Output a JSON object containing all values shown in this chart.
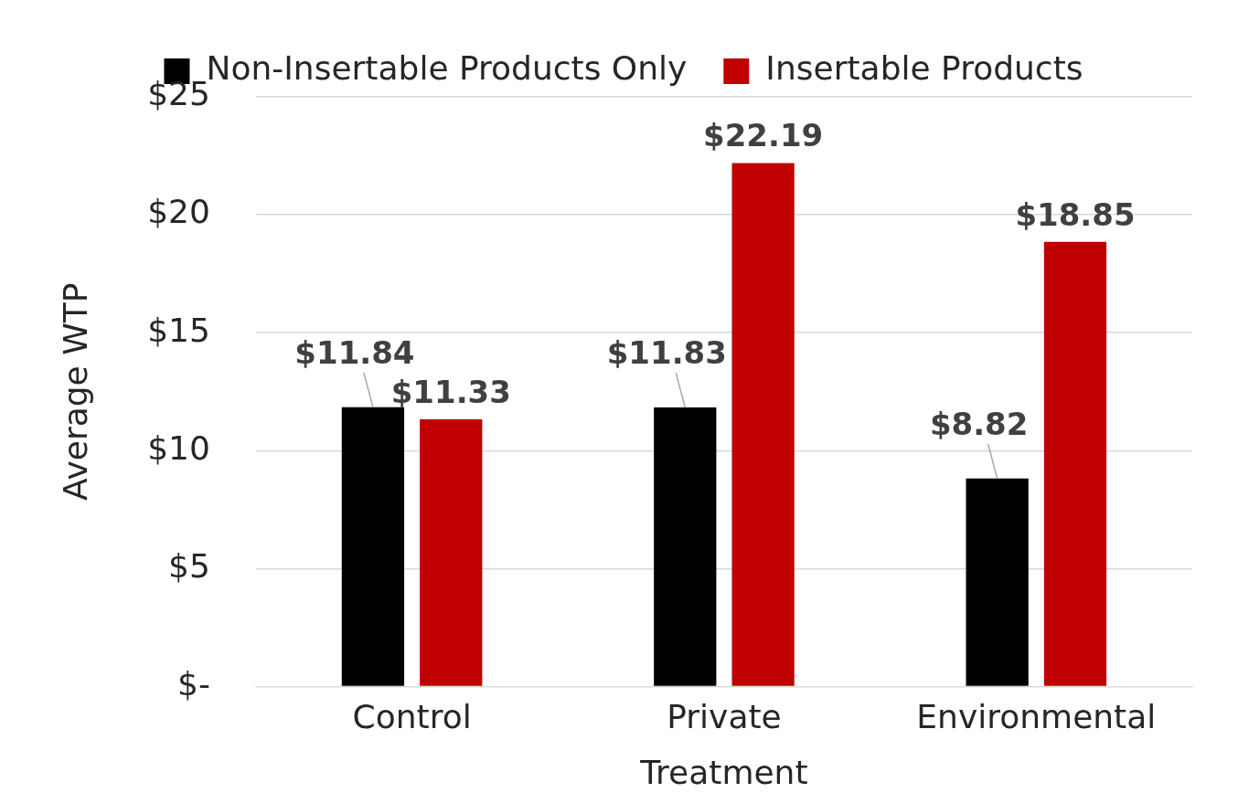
{
  "chart_data": {
    "type": "bar",
    "xlabel": "Treatment",
    "ylabel": "Average WTP",
    "categories": [
      "Control",
      "Private",
      "Environmental"
    ],
    "series": [
      {
        "name": "Non-Insertable Products Only",
        "color": "#000000",
        "values": [
          11.84,
          11.83,
          8.82
        ],
        "value_labels": [
          "$11.84",
          "$11.83",
          "$8.82"
        ]
      },
      {
        "name": "Insertable Products",
        "color": "#c00000",
        "values": [
          11.33,
          22.19,
          18.85
        ],
        "value_labels": [
          "$11.33",
          "$22.19",
          "$18.85"
        ]
      }
    ],
    "ylim": [
      0,
      25
    ],
    "yticks": [
      {
        "value": 0,
        "label": "$-"
      },
      {
        "value": 5,
        "label": "$5"
      },
      {
        "value": 10,
        "label": "$10"
      },
      {
        "value": 15,
        "label": "$15"
      },
      {
        "value": 20,
        "label": "$20"
      },
      {
        "value": 25,
        "label": "$25"
      }
    ],
    "grid": "y",
    "legend": "top"
  }
}
